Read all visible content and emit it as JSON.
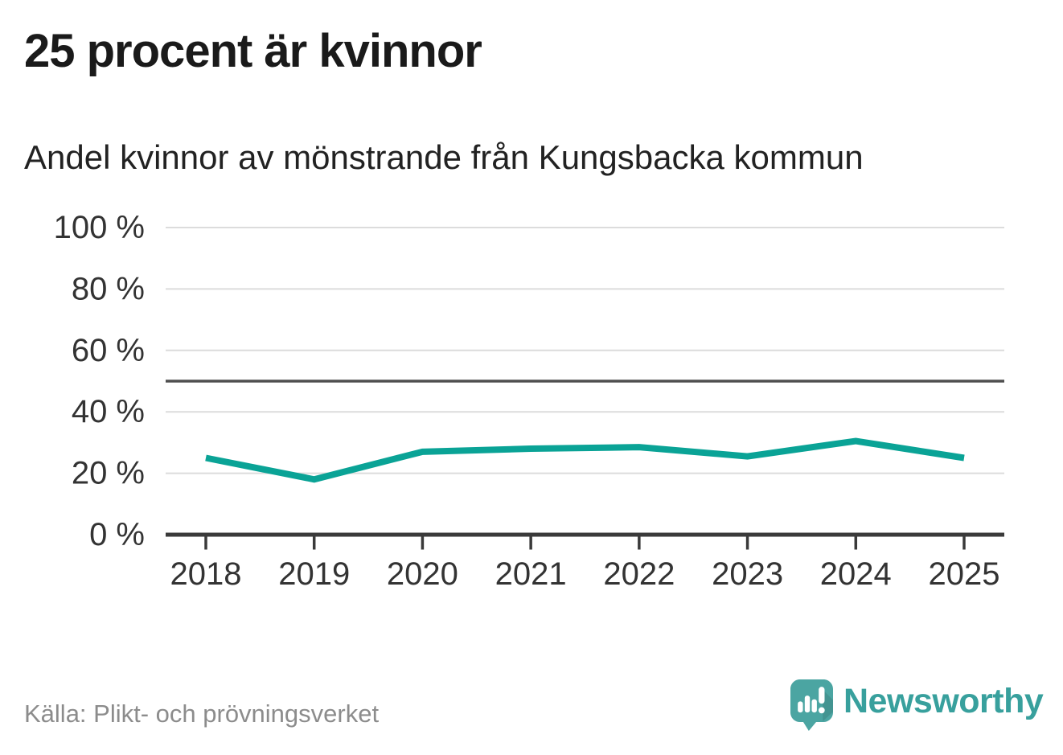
{
  "chart_data": {
    "type": "line",
    "title": "25 procent är kvinnor",
    "subtitle": "Andel kvinnor av mönstrande från Kungsbacka kommun",
    "x": [
      "2018",
      "2019",
      "2020",
      "2021",
      "2022",
      "2023",
      "2024",
      "2025"
    ],
    "series": [
      {
        "name": "Andel kvinnor av mönstrande, Kungsbacka kommun",
        "values": [
          25,
          18,
          27,
          28,
          28.5,
          25.5,
          30.5,
          25
        ]
      }
    ],
    "unit": "%",
    "ylim": [
      0,
      100
    ],
    "yticks": [
      0,
      20,
      40,
      60,
      80,
      100
    ],
    "ytick_suffix": " %",
    "reference_line_y": 50,
    "grid": true,
    "legend": "none",
    "source": "Källa: Plikt- och prövningsverket"
  },
  "footer": {
    "brand": "Newsworthy"
  },
  "colors": {
    "accent_line": "#0aa396",
    "grid": "#dcdcdc",
    "axis_line": "#3a3a3a",
    "reference_line": "#4f4f4f",
    "axis_text": "#333333",
    "title_text": "#1a1a1a",
    "subtitle_text": "#222222",
    "source_text": "#8c8c8c",
    "brand_teal": "#4ba5a2",
    "brand_text": "#38a09d"
  }
}
